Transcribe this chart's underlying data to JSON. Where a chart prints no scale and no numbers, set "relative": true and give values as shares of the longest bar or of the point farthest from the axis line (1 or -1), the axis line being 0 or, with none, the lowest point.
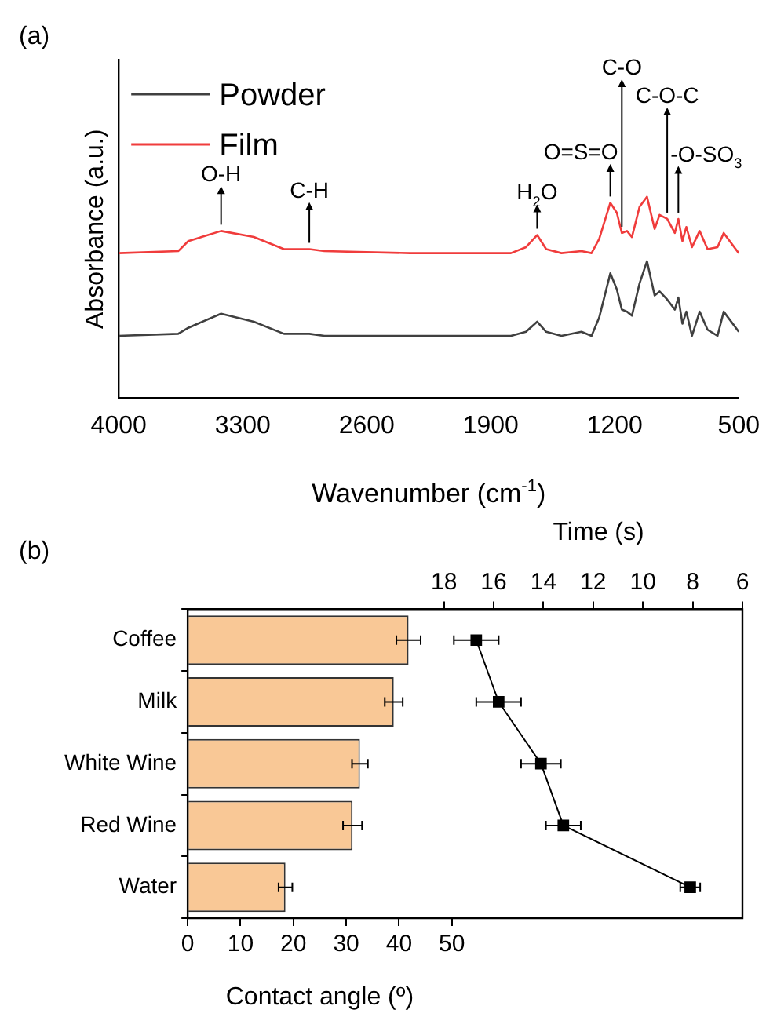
{
  "chart_data": [
    {
      "type": "line",
      "title": "(a)",
      "xlabel": "Wavenumber (cm$^{-1}$)",
      "ylabel": "Absorbance (a.u.)",
      "relative": true,
      "tick_labels": "x",
      "x": [
        4000,
        3664,
        3607,
        3422,
        3237,
        3067,
        2924,
        2839,
        2355,
        1786,
        1701,
        1638,
        1587,
        1501,
        1388,
        1331,
        1288,
        1225,
        1188,
        1160,
        1131,
        1103,
        1060,
        1018,
        975,
        947,
        904,
        861,
        841,
        818,
        796,
        764,
        721,
        676,
        620,
        585,
        500
      ],
      "xlim": [
        4000,
        500
      ],
      "xticks": [
        4000,
        3300,
        2600,
        1900,
        1200,
        500
      ],
      "grid": false,
      "legend": "top left",
      "marker": "none",
      "line_style": "solid",
      "series": [
        {
          "name": "Powder",
          "color": "#404040",
          "values": [
            0.31,
            0.32,
            0.35,
            0.42,
            0.38,
            0.32,
            0.32,
            0.31,
            0.31,
            0.31,
            0.33,
            0.38,
            0.33,
            0.31,
            0.33,
            0.31,
            0.4,
            0.62,
            0.54,
            0.44,
            0.43,
            0.41,
            0.57,
            0.68,
            0.51,
            0.53,
            0.49,
            0.44,
            0.5,
            0.37,
            0.43,
            0.31,
            0.43,
            0.34,
            0.31,
            0.43,
            0.33
          ]
        },
        {
          "name": "Film",
          "color": "#f03c3c",
          "values": [
            0.72,
            0.73,
            0.78,
            0.83,
            0.8,
            0.74,
            0.74,
            0.73,
            0.72,
            0.72,
            0.75,
            0.81,
            0.74,
            0.72,
            0.73,
            0.72,
            0.79,
            0.97,
            0.92,
            0.82,
            0.83,
            0.8,
            0.95,
            1.0,
            0.84,
            0.91,
            0.89,
            0.82,
            0.89,
            0.78,
            0.85,
            0.75,
            0.83,
            0.74,
            0.75,
            0.82,
            0.72
          ]
        }
      ],
      "annotations": [
        {
          "text": "O-H",
          "x": 3422,
          "y": 0.83
        },
        {
          "text": "C-H",
          "x": 2924,
          "y": 0.74
        },
        {
          "text": "H$_{2}$O",
          "x": 1638,
          "y": 0.81
        },
        {
          "text": "O=S=O",
          "x": 1225,
          "y": 0.97
        },
        {
          "text": "C-O",
          "x": 1160,
          "y": 0.82
        },
        {
          "text": "C-O-C",
          "x": 904,
          "y": 0.89
        },
        {
          "text": "-O-SO$_{3}$",
          "x": 841,
          "y": 0.89
        }
      ]
    },
    {
      "type": "bar",
      "orientation": "horizontal",
      "title": "(b)",
      "xlabel": "Contact angle (º)",
      "x2label": "Time (s)",
      "categories": [
        "Coffee",
        "Milk",
        "White Wine",
        "Red Wine",
        "Water"
      ],
      "xlim": [
        0,
        105
      ],
      "xticks": [
        0,
        10,
        20,
        30,
        40,
        50
      ],
      "x2lim": [
        28.3,
        6
      ],
      "x2ticks": [
        18,
        16,
        14,
        12,
        10,
        8,
        6
      ],
      "grid": false,
      "legend": false,
      "series": [
        {
          "type": "bar",
          "color": "#f9c896",
          "values": [
            41.8,
            39,
            32.6,
            31.2,
            18.5
          ],
          "errors": [
            2.3,
            1.7,
            1.5,
            1.8,
            1.3
          ]
        },
        {
          "type": "line",
          "axis": "x2",
          "color": "#000000",
          "marker": "square",
          "line_style": "solid",
          "values": [
            16.7,
            15.8,
            14.1,
            13.2,
            8.1
          ],
          "errors": [
            0.9,
            0.9,
            0.8,
            0.7,
            0.4
          ]
        }
      ]
    }
  ]
}
